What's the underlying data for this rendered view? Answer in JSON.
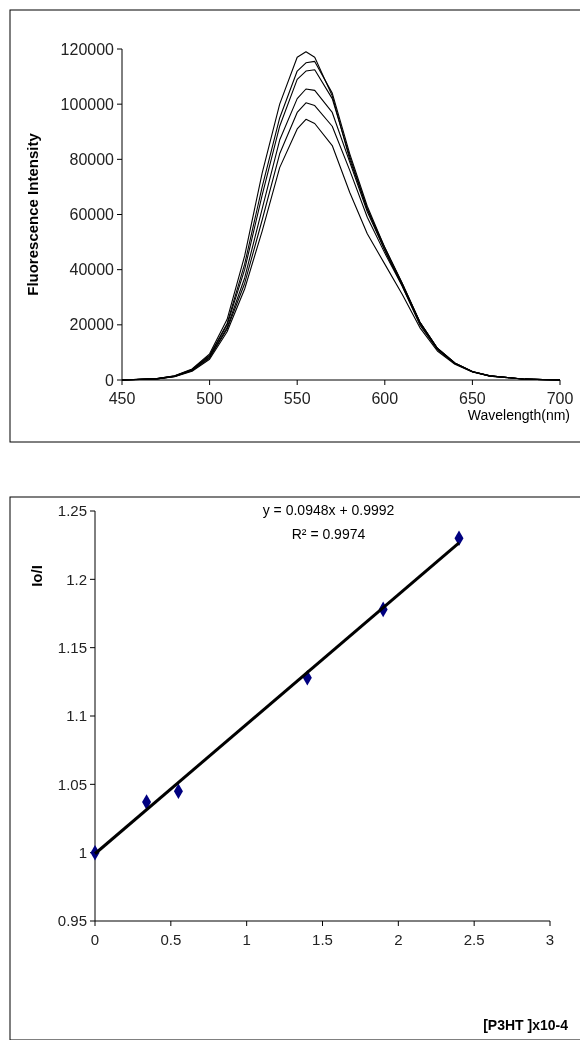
{
  "chart_data": [
    {
      "type": "line",
      "ylabel": "Fluorescence Intensity",
      "xlabel": "Wavelength(nm)",
      "xlim": [
        450,
        700
      ],
      "xticks": [
        450,
        500,
        550,
        600,
        650,
        700
      ],
      "ylim": [
        0,
        120000
      ],
      "yticks": [
        0,
        20000,
        40000,
        60000,
        80000,
        100000,
        120000
      ],
      "x": [
        450,
        470,
        480,
        490,
        500,
        510,
        520,
        530,
        540,
        550,
        555,
        560,
        570,
        580,
        590,
        600,
        610,
        620,
        630,
        640,
        650,
        660,
        680,
        700
      ],
      "series": [
        {
          "color": "#000000",
          "values": [
            0,
            500,
            1500,
            4000,
            9500,
            22000,
            45000,
            75000,
            100000,
            117000,
            119000,
            117000,
            103000,
            80000,
            62000,
            47000,
            34000,
            20000,
            11000,
            6000,
            3000,
            1500,
            300,
            0
          ]
        },
        {
          "color": "#000000",
          "values": [
            0,
            500,
            1400,
            3800,
            9000,
            20500,
            42000,
            70000,
            95000,
            112000,
            115000,
            115500,
            104000,
            82000,
            63000,
            48000,
            35000,
            21000,
            11500,
            6200,
            3100,
            1500,
            300,
            0
          ]
        },
        {
          "color": "#000000",
          "values": [
            0,
            500,
            1400,
            3700,
            8700,
            20000,
            40000,
            67000,
            92000,
            109000,
            112000,
            112500,
            102000,
            81000,
            62000,
            48000,
            35000,
            21000,
            11500,
            6200,
            3100,
            1500,
            300,
            0
          ]
        },
        {
          "color": "#000000",
          "values": [
            0,
            400,
            1300,
            3500,
            8300,
            19000,
            37000,
            62000,
            87000,
            102000,
            105500,
            105000,
            97000,
            79000,
            61000,
            47000,
            34500,
            21000,
            11500,
            6100,
            3000,
            1500,
            300,
            0
          ]
        },
        {
          "color": "#000000",
          "values": [
            0,
            400,
            1300,
            3400,
            8000,
            18500,
            35000,
            58000,
            82000,
            97000,
            100500,
            99500,
            92000,
            76000,
            59000,
            46000,
            34000,
            20500,
            11200,
            6000,
            3000,
            1400,
            300,
            0
          ]
        },
        {
          "color": "#000000",
          "values": [
            0,
            400,
            1200,
            3200,
            7500,
            17500,
            33000,
            54000,
            77000,
            91000,
            94500,
            93000,
            85000,
            68000,
            53000,
            42000,
            31000,
            19000,
            10500,
            5700,
            2900,
            1400,
            300,
            0
          ]
        }
      ]
    },
    {
      "type": "scatter",
      "ylabel": "Io/I",
      "xlabel": "[P3HT ]x10-4",
      "xlim": [
        0,
        3
      ],
      "xticks": [
        0,
        0.5,
        1,
        1.5,
        2,
        2.5,
        3
      ],
      "ylim": [
        0.95,
        1.25
      ],
      "yticks": [
        0.95,
        1,
        1.05,
        1.1,
        1.15,
        1.2,
        1.25
      ],
      "annotations": [
        "y = 0.0948x + 0.9992",
        "R² = 0.9974"
      ],
      "series": [
        {
          "type": "scatter",
          "marker": "diamond",
          "color": "#000080",
          "x": [
            0,
            0.34,
            0.55,
            1.4,
            1.9,
            2.4
          ],
          "values": [
            1,
            1.037,
            1.045,
            1.128,
            1.178,
            1.23
          ]
        },
        {
          "type": "line",
          "marker": "none",
          "color": "#000000",
          "x": [
            0,
            2.4
          ],
          "values": [
            0.9992,
            1.2267
          ]
        }
      ]
    }
  ]
}
